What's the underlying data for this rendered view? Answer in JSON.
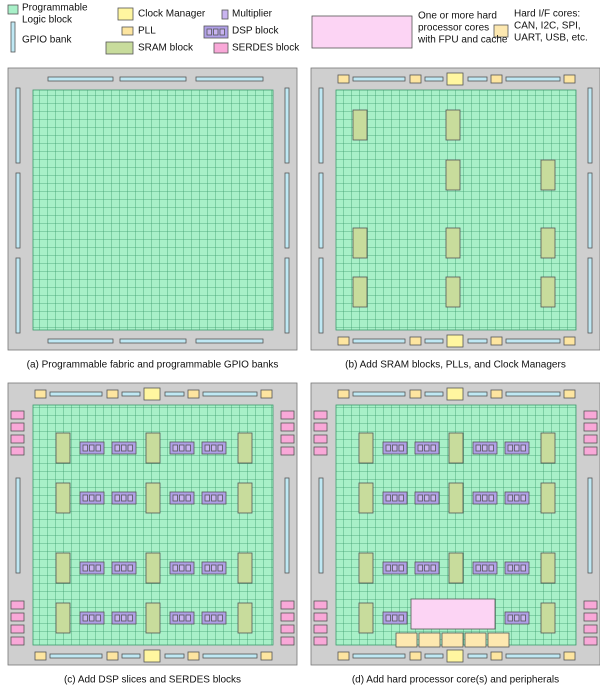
{
  "legend": [
    {
      "lines": [
        "Programmable",
        "Logic block"
      ]
    },
    {
      "lines": [
        "GPIO bank"
      ]
    },
    {
      "lines": [
        "Clock Manager"
      ]
    },
    {
      "lines": [
        "PLL"
      ]
    },
    {
      "lines": [
        "SRAM block"
      ]
    },
    {
      "lines": [
        "Multiplier"
      ]
    },
    {
      "lines": [
        "DSP block"
      ]
    },
    {
      "lines": [
        "SERDES block"
      ]
    },
    {
      "lines": [
        "One or more hard",
        "processor cores",
        "with FPU and cache"
      ]
    },
    {
      "lines": [
        "Hard I/F cores:",
        "CAN, I2C, SPI,",
        "UART, USB, etc."
      ]
    }
  ],
  "captions": [
    "(a) Programmable fabric and programmable GPIO banks",
    "(b) Add SRAM blocks, PLLs, and Clock Managers",
    "(c) Add DSP slices and SERDES blocks",
    "(d) Add hard processor core(s) and peripherals"
  ]
}
